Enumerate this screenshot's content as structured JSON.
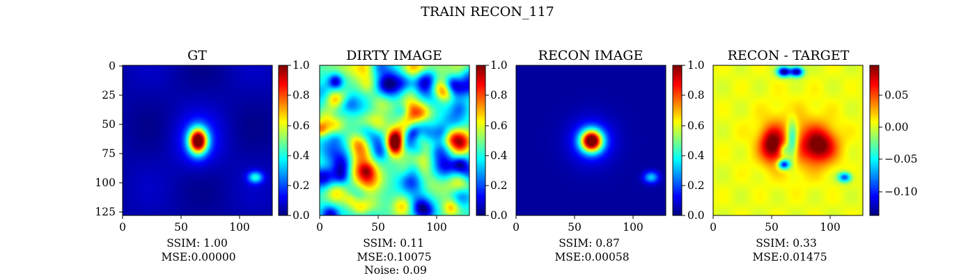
{
  "figure": {
    "suptitle": "TRAIN RECON_117"
  },
  "colormap": "jet",
  "panels": [
    {
      "title": "GT",
      "metrics": [
        "SSIM: 1.00",
        "MSE:0.00000"
      ],
      "colorbar_ticks": [
        "0.0",
        "0.2",
        "0.4",
        "0.6",
        "0.8",
        "1.0"
      ],
      "y_axis_ticks": [
        "0",
        "25",
        "50",
        "75",
        "100",
        "125"
      ]
    },
    {
      "title": "DIRTY IMAGE",
      "metrics": [
        "SSIM: 0.11",
        "MSE:0.10075",
        "Noise: 0.09"
      ],
      "colorbar_ticks": [
        "0.0",
        "0.2",
        "0.4",
        "0.6",
        "0.8",
        "1.0"
      ]
    },
    {
      "title": "RECON IMAGE",
      "metrics": [
        "SSIM: 0.87",
        "MSE:0.00058"
      ],
      "colorbar_ticks": [
        "0.0",
        "0.2",
        "0.4",
        "0.6",
        "0.8",
        "1.0"
      ]
    },
    {
      "title": "RECON - TARGET",
      "metrics": [
        "SSIM: 0.33",
        "MSE:0.01475"
      ],
      "colorbar_ticks": [
        "−0.10",
        "−0.05",
        "0.00",
        "0.05"
      ]
    }
  ],
  "x_axis_ticks": [
    "0",
    "50",
    "100"
  ],
  "chart_data": [
    {
      "type": "heatmap",
      "title": "GT",
      "image_size": [
        128,
        128
      ],
      "xlim": [
        0,
        127
      ],
      "ylim": [
        127,
        0
      ],
      "colorbar_range": [
        0.0,
        1.0
      ],
      "features": [
        {
          "kind": "gaussian",
          "x": 64,
          "y": 64,
          "value": 1.0
        },
        {
          "kind": "gaussian",
          "x": 113,
          "y": 95,
          "value": 0.35
        }
      ]
    },
    {
      "type": "heatmap",
      "title": "DIRTY IMAGE",
      "image_size": [
        128,
        128
      ],
      "xlim": [
        0,
        127
      ],
      "ylim": [
        127,
        0
      ],
      "colorbar_range": [
        0.0,
        1.0
      ],
      "features": [
        {
          "kind": "gaussian",
          "x": 64,
          "y": 64,
          "value": 1.0
        },
        {
          "kind": "noise_background",
          "value": 0.4
        }
      ]
    },
    {
      "type": "heatmap",
      "title": "RECON IMAGE",
      "image_size": [
        128,
        128
      ],
      "xlim": [
        0,
        127
      ],
      "ylim": [
        127,
        0
      ],
      "colorbar_range": [
        0.0,
        1.0
      ],
      "features": [
        {
          "kind": "gaussian",
          "x": 64,
          "y": 64,
          "value": 1.0
        },
        {
          "kind": "gaussian",
          "x": 115,
          "y": 95,
          "value": 0.3
        }
      ]
    },
    {
      "type": "heatmap",
      "title": "RECON - TARGET",
      "image_size": [
        128,
        128
      ],
      "xlim": [
        0,
        127
      ],
      "ylim": [
        127,
        0
      ],
      "colorbar_range": [
        -0.145,
        0.095
      ],
      "features": [
        {
          "kind": "gaussian",
          "x": 50,
          "y": 67,
          "value": 0.09
        },
        {
          "kind": "gaussian",
          "x": 90,
          "y": 68,
          "value": 0.09
        },
        {
          "kind": "gaussian",
          "x": 60,
          "y": 5,
          "value": -0.14
        },
        {
          "kind": "gaussian",
          "x": 71,
          "y": 5,
          "value": -0.14
        },
        {
          "kind": "gaussian",
          "x": 60,
          "y": 84,
          "value": -0.13
        },
        {
          "kind": "gaussian",
          "x": 112,
          "y": 95,
          "value": -0.1
        }
      ]
    }
  ]
}
